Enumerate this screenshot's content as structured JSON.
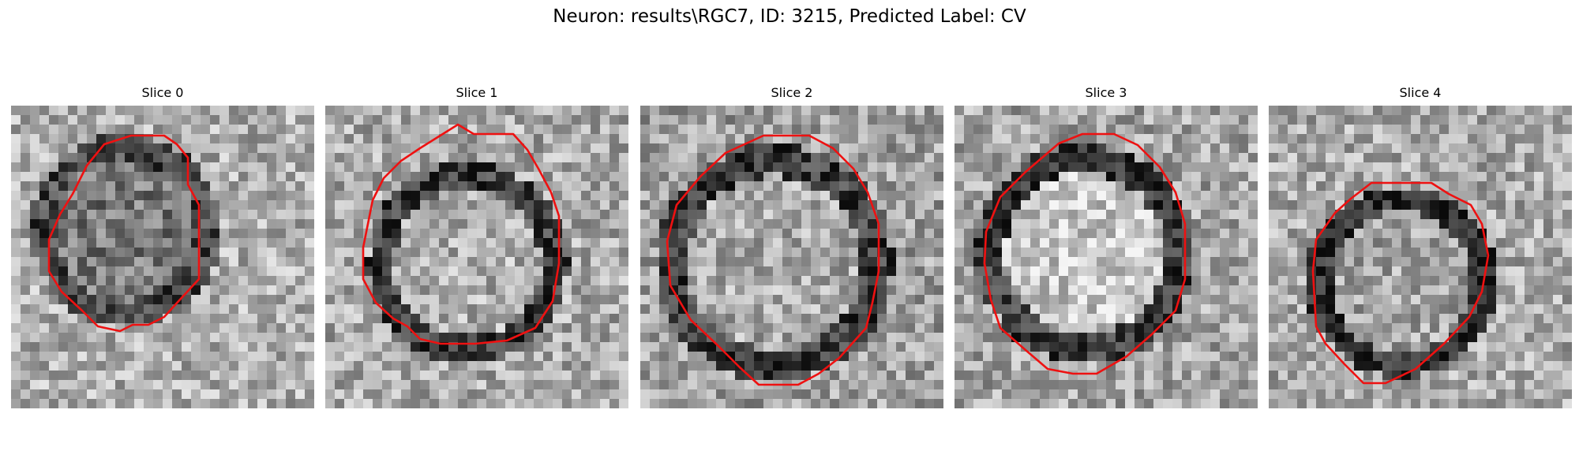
{
  "figure": {
    "title": "Neuron: results\\RGC7, ID: 3215, Predicted Label: CV"
  },
  "panels": [
    {
      "title": "Slice 0"
    },
    {
      "title": "Slice 1"
    },
    {
      "title": "Slice 2"
    },
    {
      "title": "Slice 3"
    },
    {
      "title": "Slice 4"
    }
  ],
  "colors": {
    "contour": "#ee1111",
    "background": "#ffffff"
  }
}
